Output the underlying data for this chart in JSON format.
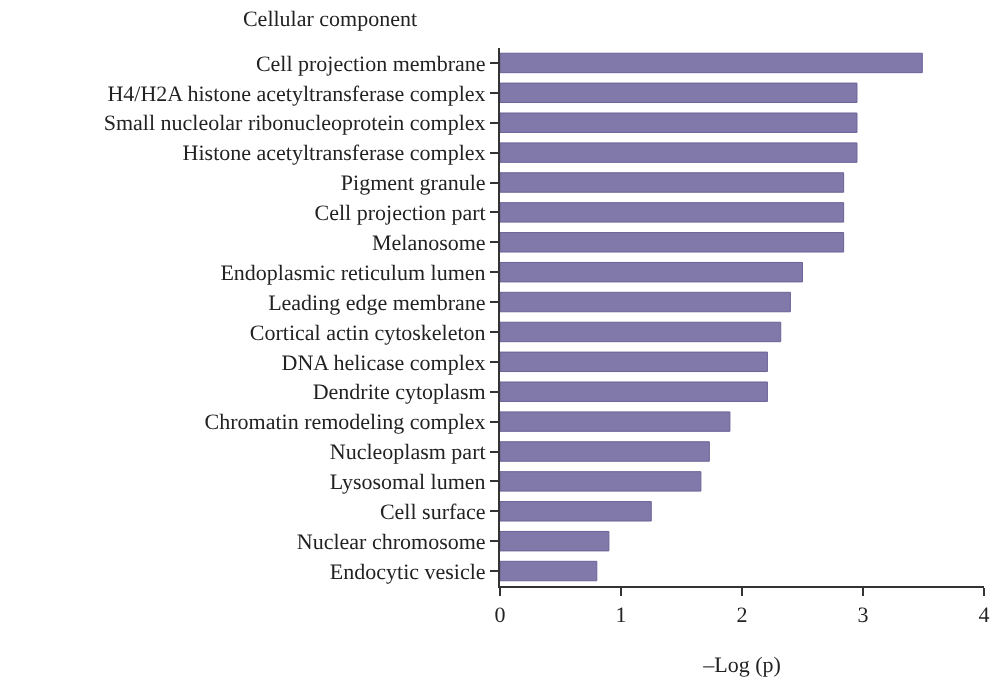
{
  "chart_data": {
    "type": "bar",
    "orientation": "horizontal",
    "title": "Cellular component",
    "xlabel": "–Log (p)",
    "categories": [
      "Cell projection membrane",
      "H4/H2A histone acetyltransferase complex",
      "Small nucleolar ribonucleoprotein complex",
      "Histone acetyltransferase complex",
      "Pigment granule",
      "Cell projection part",
      "Melanosome",
      "Endoplasmic reticulum lumen",
      "Leading edge membrane",
      "Cortical actin cytoskeleton",
      "DNA helicase complex",
      "Dendrite cytoplasm",
      "Chromatin remodeling complex",
      "Nucleoplasm part",
      "Lysosomal lumen",
      "Cell surface",
      "Nuclear chromosome",
      "Endocytic vesicle"
    ],
    "values": [
      3.49,
      2.95,
      2.95,
      2.95,
      2.84,
      2.84,
      2.84,
      2.5,
      2.4,
      2.32,
      2.21,
      2.21,
      1.9,
      1.73,
      1.66,
      1.25,
      0.9,
      0.8
    ],
    "color": "#8079aa",
    "xlim": [
      0,
      4
    ],
    "xticks": [
      0,
      1,
      2,
      3,
      4
    ],
    "grid": false,
    "legend": false
  }
}
